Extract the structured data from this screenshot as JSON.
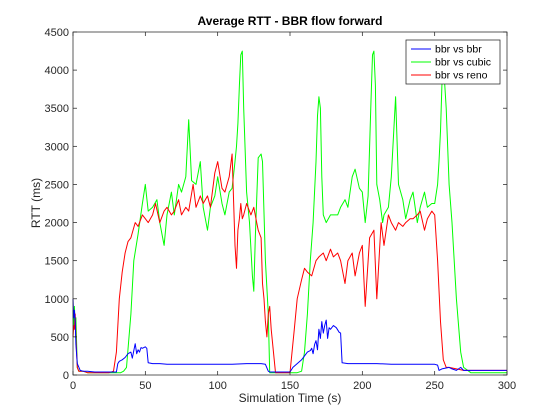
{
  "chart_data": {
    "type": "line",
    "title": "Average RTT - BBR flow forward",
    "xlabel": "Simulation Time (s)",
    "ylabel": "RTT (ms)",
    "xlim": [
      0,
      300
    ],
    "ylim": [
      0,
      4500
    ],
    "xticks": [
      0,
      50,
      100,
      150,
      200,
      250,
      300
    ],
    "yticks": [
      0,
      500,
      1000,
      1500,
      2000,
      2500,
      3000,
      3500,
      4000,
      4500
    ],
    "grid": false,
    "legend_position": "top-right",
    "series": [
      {
        "name": "bbr vs bbr",
        "color": "#0000ff",
        "x": [
          0,
          0.5,
          1,
          1.5,
          2,
          3,
          5,
          7,
          10,
          15,
          20,
          25,
          30,
          31,
          32,
          34,
          36,
          38,
          40,
          41,
          42,
          43,
          44,
          45,
          46,
          47,
          48,
          50,
          51,
          52,
          55,
          60,
          65,
          70,
          80,
          90,
          100,
          110,
          120,
          130,
          133,
          135,
          136,
          140,
          145,
          150,
          152,
          155,
          158,
          160,
          162,
          164,
          165,
          166,
          167,
          168,
          169,
          170,
          171,
          172,
          173,
          174,
          175,
          176,
          177,
          178,
          180,
          182,
          184,
          185,
          186,
          190,
          200,
          210,
          220,
          230,
          240,
          250,
          252,
          253,
          255,
          260,
          262,
          265,
          268,
          270,
          275,
          280,
          290,
          300
        ],
        "values": [
          1000,
          750,
          850,
          700,
          400,
          150,
          60,
          50,
          50,
          40,
          40,
          40,
          40,
          150,
          180,
          200,
          230,
          280,
          300,
          220,
          320,
          410,
          280,
          330,
          300,
          360,
          350,
          370,
          350,
          160,
          150,
          150,
          140,
          140,
          140,
          140,
          140,
          140,
          150,
          150,
          140,
          50,
          40,
          40,
          40,
          40,
          100,
          150,
          200,
          250,
          300,
          320,
          350,
          280,
          400,
          450,
          330,
          600,
          480,
          700,
          550,
          650,
          720,
          480,
          620,
          600,
          650,
          620,
          560,
          550,
          160,
          150,
          150,
          150,
          140,
          140,
          140,
          140,
          130,
          60,
          80,
          100,
          80,
          60,
          100,
          60,
          60,
          60,
          60,
          60
        ]
      },
      {
        "name": "bbr vs cubic",
        "color": "#00ff00",
        "x": [
          0,
          0.5,
          1,
          1.5,
          2,
          3,
          4,
          5,
          7,
          10,
          15,
          20,
          25,
          30,
          33,
          35,
          37,
          40,
          42,
          45,
          48,
          50,
          52,
          55,
          58,
          60,
          63,
          65,
          68,
          70,
          73,
          75,
          78,
          80,
          82,
          85,
          88,
          90,
          93,
          95,
          98,
          100,
          103,
          105,
          108,
          110,
          112,
          113,
          114,
          115,
          116,
          117,
          118,
          120,
          122,
          124,
          125,
          126,
          128,
          130,
          131,
          133,
          135,
          136,
          137,
          140,
          145,
          150,
          155,
          158,
          160,
          162,
          164,
          166,
          168,
          169,
          170,
          171,
          172,
          173,
          175,
          178,
          180,
          183,
          185,
          188,
          190,
          193,
          195,
          198,
          200,
          202,
          204,
          206,
          207,
          208,
          209,
          210,
          212,
          214,
          215,
          218,
          220,
          223,
          225,
          228,
          230,
          233,
          235,
          238,
          240,
          243,
          245,
          248,
          250,
          252,
          253,
          254,
          255,
          256,
          257,
          258,
          260,
          262,
          265,
          268,
          270,
          275,
          280,
          290,
          300
        ],
        "values": [
          850,
          600,
          900,
          650,
          750,
          100,
          50,
          50,
          50,
          30,
          30,
          30,
          30,
          30,
          30,
          50,
          100,
          800,
          1500,
          1850,
          2250,
          2500,
          2150,
          2200,
          2300,
          2000,
          1700,
          2100,
          2400,
          2100,
          2500,
          2400,
          2600,
          3350,
          2550,
          2500,
          2800,
          2200,
          1900,
          2200,
          2350,
          2600,
          2250,
          2100,
          2400,
          2450,
          2800,
          3000,
          3300,
          3800,
          4200,
          4250,
          3500,
          2400,
          2000,
          1300,
          1100,
          1800,
          2850,
          2900,
          2800,
          1500,
          800,
          30,
          30,
          30,
          30,
          30,
          30,
          50,
          300,
          800,
          1500,
          2000,
          2800,
          3400,
          3650,
          3500,
          2600,
          2100,
          2000,
          2100,
          2100,
          2100,
          2200,
          2300,
          2200,
          2600,
          2700,
          2450,
          2400,
          2000,
          2350,
          3600,
          4200,
          4250,
          3800,
          2500,
          2300,
          2000,
          2100,
          2200,
          2600,
          3650,
          2500,
          2300,
          2050,
          2300,
          2400,
          2000,
          2200,
          2400,
          2200,
          2250,
          2250,
          2500,
          2800,
          3200,
          3800,
          4050,
          3800,
          3500,
          2500,
          2000,
          1000,
          300,
          100,
          30,
          30,
          30,
          30
        ]
      },
      {
        "name": "bbr vs reno",
        "color": "#ff0000",
        "x": [
          0,
          0.5,
          1,
          1.5,
          2,
          3,
          4,
          5,
          7,
          10,
          15,
          20,
          25,
          28,
          30,
          32,
          34,
          36,
          38,
          40,
          43,
          45,
          48,
          50,
          52,
          55,
          57,
          60,
          63,
          65,
          68,
          70,
          73,
          75,
          78,
          80,
          83,
          85,
          88,
          90,
          93,
          95,
          98,
          100,
          103,
          105,
          108,
          110,
          112,
          113,
          114,
          115,
          116,
          117,
          118,
          120,
          123,
          125,
          127,
          128,
          130,
          131,
          132,
          133,
          134,
          135,
          136,
          137,
          140,
          145,
          150,
          153,
          155,
          158,
          160,
          162,
          165,
          168,
          170,
          173,
          175,
          178,
          180,
          183,
          185,
          188,
          190,
          193,
          195,
          198,
          200,
          202,
          205,
          208,
          210,
          213,
          215,
          218,
          220,
          223,
          225,
          228,
          230,
          233,
          235,
          238,
          240,
          243,
          245,
          248,
          250,
          252,
          254,
          256,
          258,
          260,
          265,
          270,
          280,
          290,
          300
        ],
        "values": [
          500,
          650,
          600,
          800,
          500,
          100,
          50,
          50,
          50,
          30,
          30,
          30,
          30,
          50,
          300,
          1000,
          1350,
          1600,
          1750,
          1800,
          2000,
          1950,
          2100,
          2050,
          2000,
          2100,
          2250,
          2000,
          2150,
          2200,
          2100,
          2150,
          2300,
          2100,
          2200,
          2150,
          2500,
          2200,
          2350,
          2250,
          2350,
          2200,
          2650,
          2800,
          2450,
          2400,
          2600,
          2900,
          1700,
          1400,
          1900,
          2050,
          2250,
          2050,
          2100,
          2250,
          2100,
          2200,
          2000,
          1900,
          1800,
          1200,
          1000,
          700,
          500,
          800,
          900,
          600,
          30,
          30,
          30,
          600,
          1000,
          1250,
          1400,
          1350,
          1300,
          1500,
          1550,
          1600,
          1500,
          1650,
          1550,
          1600,
          1500,
          1200,
          1500,
          1600,
          1300,
          1600,
          1700,
          900,
          1800,
          1900,
          1000,
          2000,
          1700,
          2100,
          2000,
          1900,
          2000,
          1950,
          2000,
          2050,
          2050,
          2100,
          2150,
          1900,
          2050,
          2150,
          2100,
          1500,
          700,
          200,
          100,
          100,
          80,
          60,
          60,
          60,
          60
        ]
      }
    ]
  }
}
